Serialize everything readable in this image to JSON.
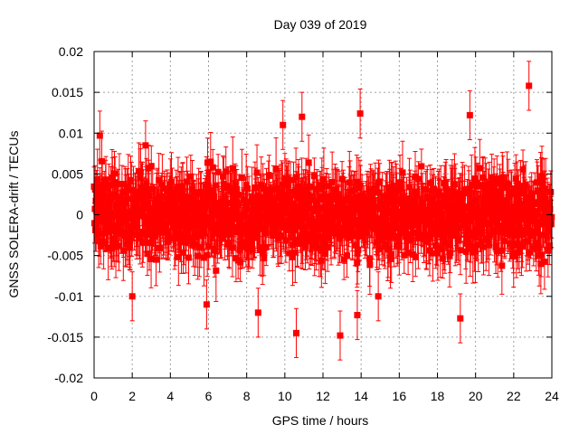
{
  "chart_data": {
    "type": "scatter",
    "title": "Day 039 of 2019",
    "xlabel": "GPS time / hours",
    "ylabel": "GNSS SOLERA-drift / TECUs",
    "xlim": [
      0,
      24
    ],
    "ylim": [
      -0.02,
      0.02
    ],
    "xticks": [
      0,
      2,
      4,
      6,
      8,
      10,
      12,
      14,
      16,
      18,
      20,
      22,
      24
    ],
    "yticks": [
      -0.02,
      -0.015,
      -0.01,
      -0.005,
      0,
      0.005,
      0.01,
      0.015,
      0.02
    ],
    "xtick_labels": [
      "0",
      "2",
      "4",
      "6",
      "8",
      "10",
      "12",
      "14",
      "16",
      "18",
      "20",
      "22",
      "24"
    ],
    "ytick_labels": [
      "-0.02",
      "-0.015",
      "-0.01",
      "-0.005",
      "0",
      "0.005",
      "0.01",
      "0.015",
      "0.02"
    ],
    "grid": true,
    "series": [
      {
        "name": "SOLERA-drift",
        "color": "#ff0000",
        "marker": "square",
        "errorbars": true,
        "note": "dense cloud of ~1400 points with errorbars centered on 0, spread about ±0.004 TECU; selected outliers listed",
        "count": 1400,
        "center": 0,
        "spread": 0.004,
        "error": 0.003,
        "outliers": [
          {
            "x": 22.8,
            "y": 0.0158
          },
          {
            "x": 10.6,
            "y": -0.0145
          },
          {
            "x": 12.9,
            "y": -0.0148
          },
          {
            "x": 13.95,
            "y": 0.0124
          },
          {
            "x": 10.9,
            "y": 0.012
          },
          {
            "x": 19.7,
            "y": 0.0122
          },
          {
            "x": 0.3,
            "y": 0.0097
          },
          {
            "x": 2.7,
            "y": 0.0085
          },
          {
            "x": 5.9,
            "y": -0.011
          },
          {
            "x": 8.6,
            "y": -0.012
          },
          {
            "x": 13.8,
            "y": -0.0123
          },
          {
            "x": 19.2,
            "y": -0.0127
          },
          {
            "x": 2.0,
            "y": -0.01
          },
          {
            "x": 9.9,
            "y": 0.011
          },
          {
            "x": 14.9,
            "y": -0.01
          }
        ]
      }
    ]
  }
}
